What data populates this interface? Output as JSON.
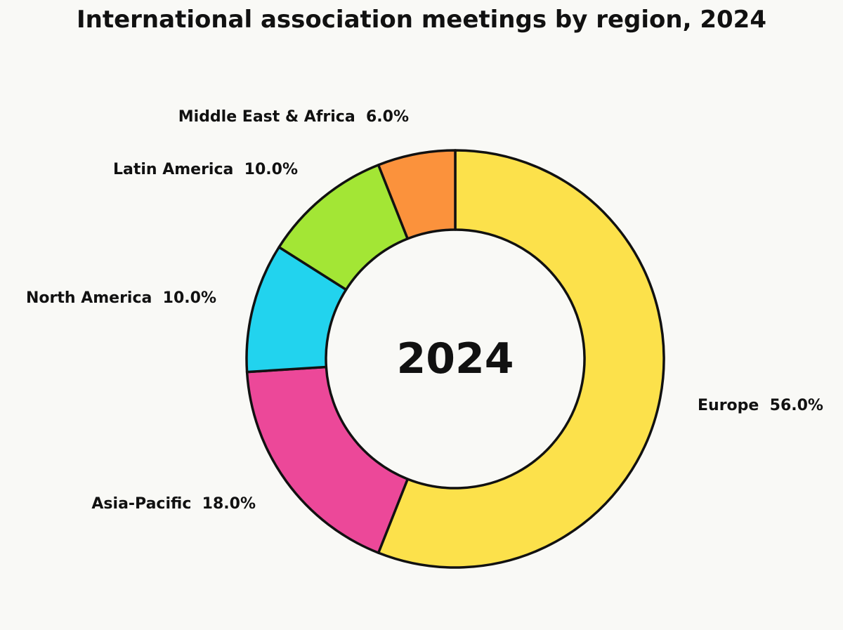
{
  "chart_data": {
    "type": "pie",
    "variant": "donut",
    "title": "International association meetings by region, 2024",
    "center_label": "2024",
    "start_angle": "top, clockwise",
    "slices": [
      {
        "label": "Europe",
        "value": 56.0,
        "display": "Europe  56.0%",
        "color": "#fce14b"
      },
      {
        "label": "Asia-Pacific",
        "value": 18.0,
        "display": "Asia-Pacific  18.0%",
        "color": "#ec4899"
      },
      {
        "label": "North America",
        "value": 10.0,
        "display": "North America  10.0%",
        "color": "#22d3ee"
      },
      {
        "label": "Latin America",
        "value": 10.0,
        "display": "Latin America  10.0%",
        "color": "#a3e635"
      },
      {
        "label": "Middle East & Africa",
        "value": 6.0,
        "display": "Middle East & Africa  6.0%",
        "color": "#fb923c"
      }
    ]
  }
}
